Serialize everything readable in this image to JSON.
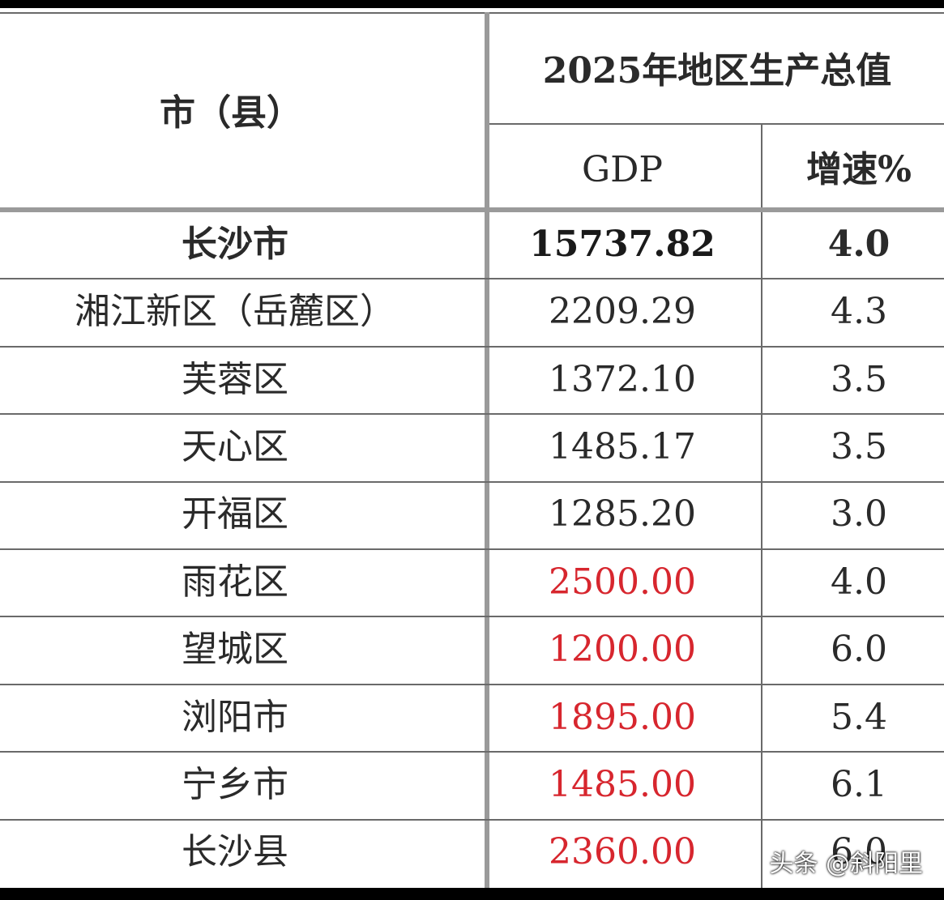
{
  "table": {
    "header": {
      "region": "市（县）",
      "group": "2025年地区生产总值",
      "gdp": "GDP",
      "growth": "增速%"
    },
    "rows": [
      {
        "name": "长沙市",
        "gdp": "15737.82",
        "growth": "4.0",
        "gdp_color": "#1a1a1a",
        "bold": true
      },
      {
        "name": "湘江新区（岳麓区）",
        "gdp": "2209.29",
        "growth": "4.3",
        "gdp_color": "#2a2a2a",
        "bold": false
      },
      {
        "name": "芙蓉区",
        "gdp": "1372.10",
        "growth": "3.5",
        "gdp_color": "#2a2a2a",
        "bold": false
      },
      {
        "name": "天心区",
        "gdp": "1485.17",
        "growth": "3.5",
        "gdp_color": "#2a2a2a",
        "bold": false
      },
      {
        "name": "开福区",
        "gdp": "1285.20",
        "growth": "3.0",
        "gdp_color": "#2a2a2a",
        "bold": false
      },
      {
        "name": "雨花区",
        "gdp": "2500.00",
        "growth": "4.0",
        "gdp_color": "#d7262e",
        "bold": false
      },
      {
        "name": "望城区",
        "gdp": "1200.00",
        "growth": "6.0",
        "gdp_color": "#d7262e",
        "bold": false
      },
      {
        "name": "浏阳市",
        "gdp": "1895.00",
        "growth": "5.4",
        "gdp_color": "#d7262e",
        "bold": false
      },
      {
        "name": "宁乡市",
        "gdp": "1485.00",
        "growth": "6.1",
        "gdp_color": "#d7262e",
        "bold": false
      },
      {
        "name": "长沙县",
        "gdp": "2360.00",
        "growth": "6.0",
        "gdp_color": "#d7262e",
        "bold": false
      }
    ]
  },
  "watermark": "头条 @斜阳里"
}
